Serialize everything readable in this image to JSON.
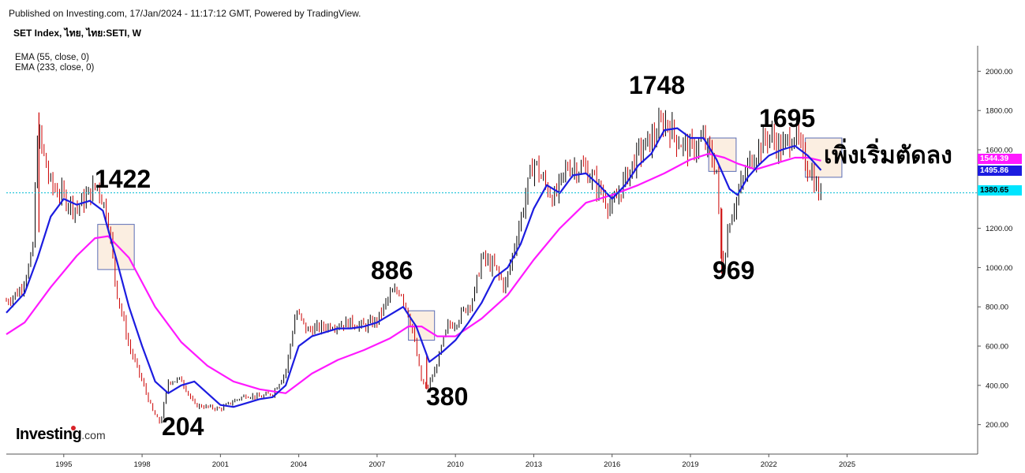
{
  "header": {
    "published": "Published on Investing.com, 17/Jan/2024 - 11:17:12 GMT, Powered by TradingView.",
    "symbol": "SET Index, ไทย, ไทย:SETI, W"
  },
  "indicators": [
    "EMA (55, close, 0)",
    "EMA (233, close, 0)"
  ],
  "logo": {
    "brand": "Investing",
    "suffix": ".com"
  },
  "annotations": {
    "peak_1996": "1422",
    "low_1998": "204",
    "peak_2007": "886",
    "low_2008": "380",
    "peak_2018": "1748",
    "low_2020": "969",
    "peak_2023": "1695",
    "note": "เพิ่งเริ่มตัดลง"
  },
  "price_tags": {
    "ema233": "1544.39",
    "ema55": "1495.86",
    "last": "1380.65"
  },
  "colors": {
    "candle_up": "#000000",
    "candle_down": "#cc0000",
    "ema55": "#1c1ce0",
    "ema233": "#ff19ff",
    "last_line": "#00bcd4",
    "last_tag_bg": "#00e5ff",
    "box_fill": "#fbeee1",
    "box_stroke": "#5b6db5"
  },
  "chart_data": {
    "type": "line",
    "title": "SET Index, ไทย, ไทย:SETI, W",
    "xlabel": "",
    "ylabel": "",
    "x_ticks": [
      "1995",
      "1998",
      "2001",
      "2004",
      "2007",
      "2010",
      "2013",
      "2016",
      "2019",
      "2022",
      "2025"
    ],
    "y_ticks": [
      "200.00",
      "400.00",
      "600.00",
      "800.00",
      "1000.00",
      "1200.00",
      "1400.00",
      "1600.00",
      "1800.00",
      "2000.00"
    ],
    "xlim": [
      1992.8,
      2030.0
    ],
    "ylim": [
      50,
      2130
    ],
    "grid": false,
    "series": [
      {
        "name": "SET Index",
        "x": [
          1992.8,
          1993.3,
          1993.8,
          1994.0,
          1994.5,
          1995.0,
          1995.5,
          1996.0,
          1996.3,
          1996.7,
          1997.0,
          1997.5,
          1998.0,
          1998.4,
          1998.7,
          1999.0,
          1999.5,
          2000.0,
          2000.5,
          2001.0,
          2001.5,
          2002.0,
          2002.5,
          2003.0,
          2003.5,
          2003.9,
          2004.3,
          2005.0,
          2006.0,
          2006.5,
          2007.0,
          2007.5,
          2007.9,
          2008.3,
          2008.7,
          2008.9,
          2009.2,
          2009.7,
          2010.0,
          2010.7,
          2011.0,
          2011.5,
          2011.9,
          2012.5,
          2013.0,
          2013.3,
          2013.8,
          2014.3,
          2015.0,
          2015.5,
          2016.0,
          2016.5,
          2017.0,
          2017.5,
          2018.0,
          2018.2,
          2018.5,
          2019.0,
          2019.5,
          2020.0,
          2020.2,
          2020.5,
          2020.9,
          2021.3,
          2022.0,
          2022.5,
          2023.0,
          2023.3,
          2023.6,
          2023.9,
          2024.05
        ],
        "values": [
          830,
          880,
          1050,
          1700,
          1420,
          1360,
          1300,
          1380,
          1422,
          1250,
          900,
          600,
          420,
          270,
          204,
          420,
          430,
          300,
          290,
          280,
          320,
          350,
          340,
          360,
          470,
          780,
          680,
          700,
          720,
          700,
          730,
          860,
          886,
          720,
          420,
          380,
          470,
          700,
          720,
          850,
          1050,
          1000,
          900,
          1250,
          1550,
          1450,
          1350,
          1520,
          1500,
          1400,
          1300,
          1450,
          1580,
          1650,
          1748,
          1720,
          1650,
          1600,
          1650,
          1500,
          969,
          1250,
          1400,
          1550,
          1680,
          1600,
          1695,
          1560,
          1500,
          1380,
          1380.65
        ]
      },
      {
        "name": "EMA (55, close, 0)",
        "x": [
          1992.8,
          1993.5,
          1994.0,
          1994.5,
          1995.0,
          1995.5,
          1996.0,
          1996.5,
          1997.0,
          1997.5,
          1998.0,
          1998.5,
          1999.0,
          1999.5,
          2000.0,
          2000.5,
          2001.0,
          2001.5,
          2002.0,
          2002.5,
          2003.0,
          2003.5,
          2004.0,
          2004.5,
          2005.0,
          2005.5,
          2006.0,
          2006.5,
          2007.0,
          2007.5,
          2008.0,
          2008.5,
          2009.0,
          2009.5,
          2010.0,
          2010.5,
          2011.0,
          2011.5,
          2012.0,
          2012.5,
          2013.0,
          2013.5,
          2014.0,
          2014.5,
          2015.0,
          2015.5,
          2016.0,
          2016.5,
          2017.0,
          2017.5,
          2018.0,
          2018.5,
          2019.0,
          2019.5,
          2020.0,
          2020.5,
          2020.8,
          2021.2,
          2021.6,
          2022.0,
          2022.5,
          2023.0,
          2023.5,
          2024.0
        ],
        "values": [
          770,
          870,
          1050,
          1260,
          1350,
          1320,
          1340,
          1290,
          1050,
          800,
          600,
          420,
          360,
          400,
          420,
          360,
          300,
          290,
          310,
          330,
          340,
          400,
          600,
          650,
          670,
          690,
          690,
          700,
          720,
          760,
          800,
          700,
          520,
          570,
          630,
          720,
          820,
          950,
          1000,
          1120,
          1300,
          1420,
          1380,
          1470,
          1480,
          1420,
          1350,
          1420,
          1520,
          1580,
          1700,
          1710,
          1660,
          1660,
          1550,
          1400,
          1370,
          1460,
          1520,
          1570,
          1600,
          1620,
          1570,
          1495.86
        ]
      },
      {
        "name": "EMA (233, close, 0)",
        "x": [
          1992.8,
          1993.5,
          1994.5,
          1995.5,
          1996.2,
          1996.7,
          1997.5,
          1998.5,
          1999.5,
          2000.5,
          2001.5,
          2002.5,
          2003.5,
          2004.5,
          2005.5,
          2006.5,
          2007.5,
          2008.2,
          2008.7,
          2009.3,
          2010.0,
          2011.0,
          2012.0,
          2013.0,
          2014.0,
          2015.0,
          2016.0,
          2017.0,
          2018.0,
          2019.0,
          2019.7,
          2020.3,
          2020.8,
          2021.5,
          2022.0,
          2022.5,
          2023.0,
          2023.5,
          2024.0
        ],
        "values": [
          660,
          720,
          900,
          1060,
          1150,
          1160,
          1050,
          800,
          620,
          500,
          420,
          380,
          360,
          460,
          530,
          580,
          640,
          700,
          700,
          650,
          650,
          740,
          860,
          1040,
          1200,
          1330,
          1370,
          1420,
          1480,
          1550,
          1580,
          1560,
          1530,
          1500,
          1520,
          1540,
          1560,
          1560,
          1544.39
        ]
      }
    ],
    "highlight_boxes": [
      {
        "x": [
          1996.3,
          1997.7
        ],
        "y": [
          990,
          1220
        ]
      },
      {
        "x": [
          2008.2,
          2009.2
        ],
        "y": [
          630,
          780
        ]
      },
      {
        "x": [
          2019.7,
          2020.75
        ],
        "y": [
          1490,
          1660
        ]
      },
      {
        "x": [
          2023.4,
          2024.8
        ],
        "y": [
          1460,
          1660
        ]
      }
    ],
    "last_value": 1380.65
  }
}
